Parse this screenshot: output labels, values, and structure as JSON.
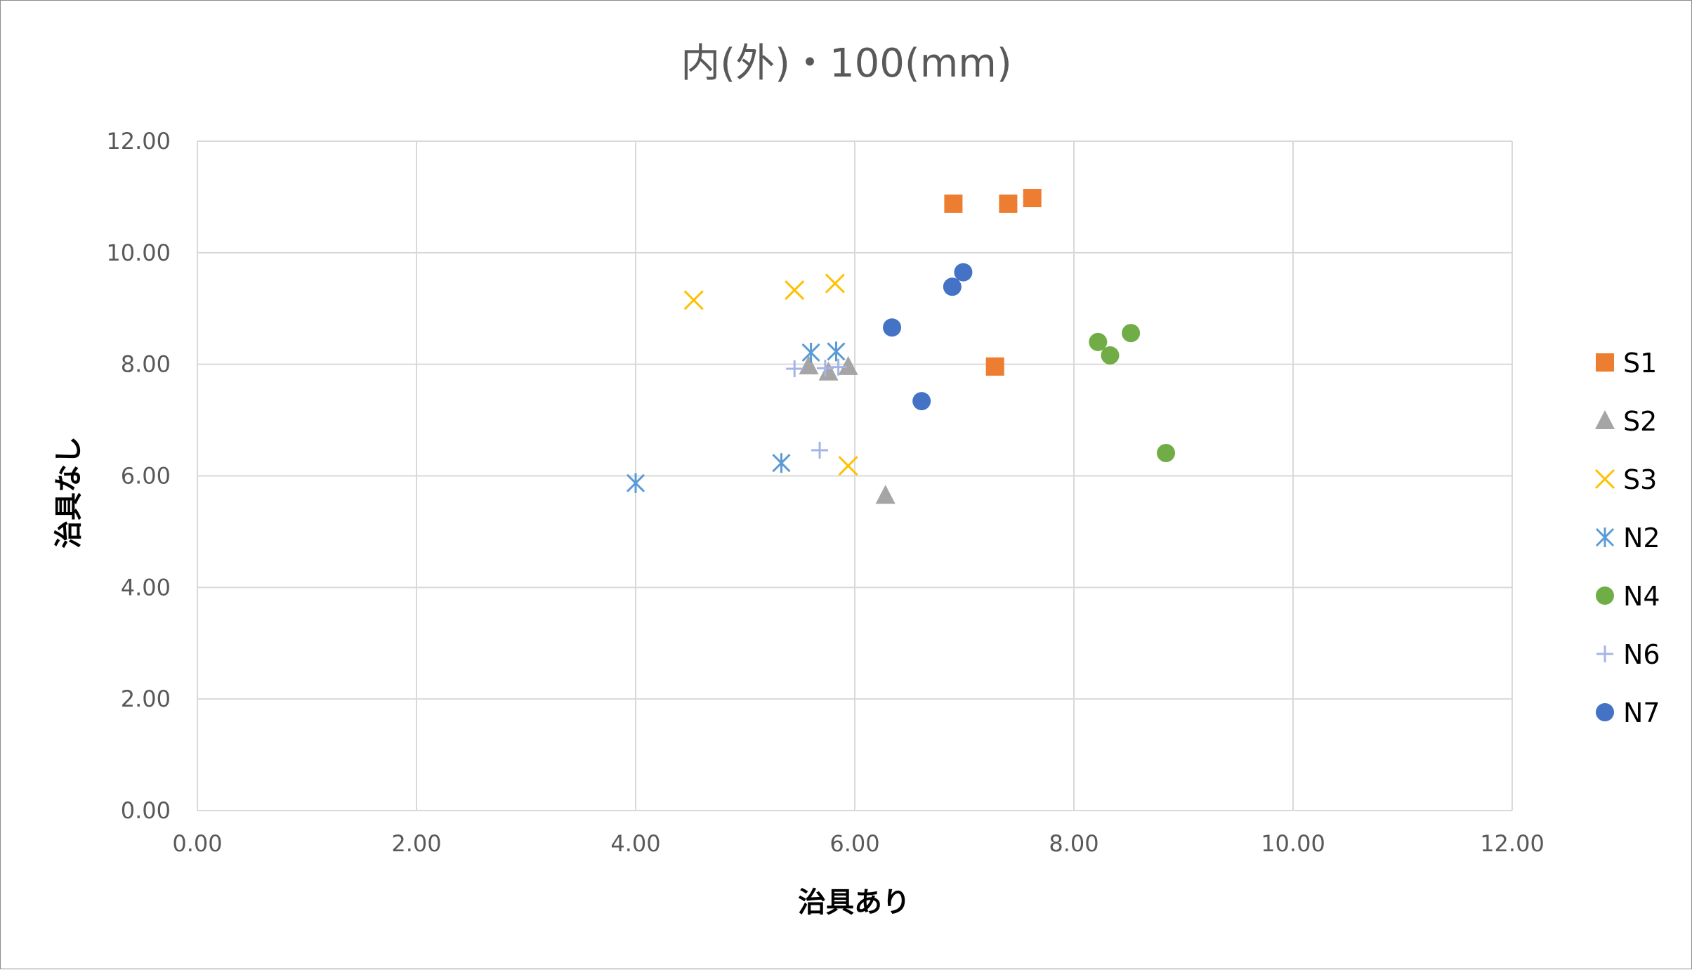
{
  "chart_data": {
    "type": "scatter",
    "title": "内(外)・100(mm)",
    "xlabel": "治具あり",
    "ylabel": "治具なし",
    "xlim": [
      0,
      12
    ],
    "ylim": [
      0,
      12
    ],
    "x_ticks": [
      "0.00",
      "2.00",
      "4.00",
      "6.00",
      "8.00",
      "10.00",
      "12.00"
    ],
    "y_ticks": [
      "0.00",
      "2.00",
      "4.00",
      "6.00",
      "8.00",
      "10.00",
      "12.00"
    ],
    "grid": true,
    "legend_position": "right",
    "series": [
      {
        "name": "S1",
        "marker": "square",
        "color": "#ED7D31",
        "points": [
          [
            6.9,
            10.88
          ],
          [
            7.4,
            10.88
          ],
          [
            7.62,
            10.98
          ],
          [
            7.28,
            7.96
          ]
        ]
      },
      {
        "name": "S2",
        "marker": "triangle",
        "color": "#A5A5A5",
        "points": [
          [
            5.58,
            7.97
          ],
          [
            5.76,
            7.86
          ],
          [
            5.94,
            7.96
          ],
          [
            6.28,
            5.65
          ]
        ]
      },
      {
        "name": "S3",
        "marker": "x",
        "color": "#FFC000",
        "points": [
          [
            4.53,
            9.15
          ],
          [
            5.45,
            9.33
          ],
          [
            5.82,
            9.45
          ],
          [
            5.94,
            6.18
          ]
        ]
      },
      {
        "name": "N2",
        "marker": "asterisk",
        "color": "#5B9BD5",
        "points": [
          [
            5.6,
            8.21
          ],
          [
            5.83,
            8.23
          ],
          [
            5.33,
            6.23
          ],
          [
            4.0,
            5.87
          ]
        ]
      },
      {
        "name": "N4",
        "marker": "circle",
        "color": "#70AD47",
        "points": [
          [
            8.22,
            8.4
          ],
          [
            8.33,
            8.16
          ],
          [
            8.52,
            8.56
          ],
          [
            8.84,
            6.41
          ]
        ]
      },
      {
        "name": "N6",
        "marker": "plus",
        "color": "#A5B4E6",
        "points": [
          [
            5.45,
            7.92
          ],
          [
            5.68,
            6.46
          ],
          [
            5.85,
            7.95
          ],
          [
            5.73,
            7.93
          ]
        ]
      },
      {
        "name": "N7",
        "marker": "circle",
        "color": "#4472C4",
        "points": [
          [
            6.34,
            8.66
          ],
          [
            6.89,
            9.39
          ],
          [
            6.99,
            9.65
          ],
          [
            6.61,
            7.34
          ]
        ]
      }
    ]
  }
}
